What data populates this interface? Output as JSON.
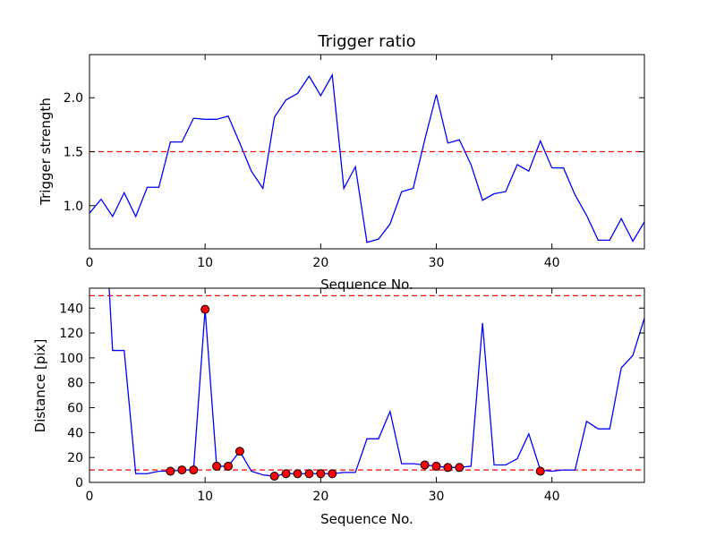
{
  "chart_data": [
    {
      "type": "line",
      "title": "Trigger ratio",
      "xlabel": "Sequence No.",
      "ylabel": "Trigger strength",
      "xlim": [
        0,
        48
      ],
      "ylim": [
        0.6,
        2.4
      ],
      "xticks": [
        0,
        10,
        20,
        30,
        40
      ],
      "yticks": [
        1.0,
        1.5,
        2.0
      ],
      "xtick_labels": [
        "0",
        "10",
        "20",
        "30",
        "40"
      ],
      "ytick_labels": [
        "1.0",
        "1.5",
        "2.0"
      ],
      "grid": false,
      "threshold": {
        "y": 1.5,
        "color": "#ff0000",
        "style": "dashed"
      },
      "series": [
        {
          "color": "#0000ff",
          "x": [
            0,
            1,
            2,
            3,
            4,
            5,
            6,
            7,
            8,
            9,
            10,
            11,
            12,
            13,
            14,
            15,
            16,
            17,
            18,
            19,
            20,
            21,
            22,
            23,
            24,
            25,
            26,
            27,
            28,
            29,
            30,
            31,
            32,
            33,
            34,
            35,
            36,
            37,
            38,
            39,
            40,
            41,
            42,
            43,
            44,
            45,
            46,
            47,
            48
          ],
          "values": [
            0.93,
            1.06,
            0.9,
            1.12,
            0.9,
            1.17,
            1.17,
            1.59,
            1.59,
            1.81,
            1.8,
            1.8,
            1.83,
            1.58,
            1.32,
            1.16,
            1.82,
            1.98,
            2.04,
            2.2,
            2.02,
            2.21,
            1.16,
            1.36,
            0.66,
            0.69,
            0.83,
            1.13,
            1.16,
            1.61,
            2.03,
            1.58,
            1.61,
            1.38,
            1.05,
            1.11,
            1.13,
            1.38,
            1.32,
            1.6,
            1.35,
            1.35,
            1.1,
            0.91,
            0.68,
            0.68,
            0.88,
            0.67,
            0.85
          ]
        }
      ]
    },
    {
      "type": "line",
      "title": "",
      "xlabel": "Sequence No.",
      "ylabel": "Distance [pix]",
      "xlim": [
        0,
        48
      ],
      "ylim": [
        0,
        156
      ],
      "xticks": [
        0,
        10,
        20,
        30,
        40
      ],
      "yticks": [
        0,
        20,
        40,
        60,
        80,
        100,
        120,
        140
      ],
      "xtick_labels": [
        "0",
        "10",
        "20",
        "30",
        "40"
      ],
      "ytick_labels": [
        "0",
        "20",
        "40",
        "60",
        "80",
        "100",
        "120",
        "140"
      ],
      "grid": false,
      "thresholds": [
        {
          "y": 150,
          "color": "#ff0000",
          "style": "dashed"
        },
        {
          "y": 10,
          "color": "#ff0000",
          "style": "dashed"
        }
      ],
      "series": [
        {
          "color": "#0000ff",
          "x": [
            1.7,
            2,
            3,
            4,
            5,
            6,
            7,
            8,
            9,
            10,
            11,
            12,
            13,
            14,
            15,
            16,
            17,
            18,
            19,
            20,
            21,
            22,
            23,
            24,
            25,
            26,
            27,
            28,
            29,
            30,
            31,
            32,
            33,
            34,
            35,
            36,
            37,
            38,
            39,
            40,
            41,
            42,
            43,
            44,
            45,
            46,
            47,
            48
          ],
          "values": [
            156,
            106,
            106,
            7,
            7,
            9,
            9,
            10,
            10,
            139,
            13,
            13,
            25,
            9,
            6,
            5,
            7,
            7,
            7,
            7,
            7,
            8,
            8,
            35,
            35,
            57,
            15,
            15,
            14,
            13,
            12,
            12,
            13,
            128,
            14,
            14,
            19,
            39,
            10,
            9,
            10,
            10,
            49,
            43,
            43,
            92,
            102,
            132
          ]
        },
        {
          "name": "markers",
          "color": "#ff0000",
          "marker": "circle",
          "x": [
            7,
            8,
            9,
            10,
            11,
            12,
            13,
            16,
            17,
            18,
            19,
            20,
            21,
            29,
            30,
            31,
            32,
            39
          ],
          "values": [
            9,
            10,
            10,
            139,
            13,
            13,
            25,
            5,
            7,
            7,
            7,
            7,
            7,
            14,
            13,
            12,
            12,
            9
          ]
        }
      ]
    }
  ]
}
